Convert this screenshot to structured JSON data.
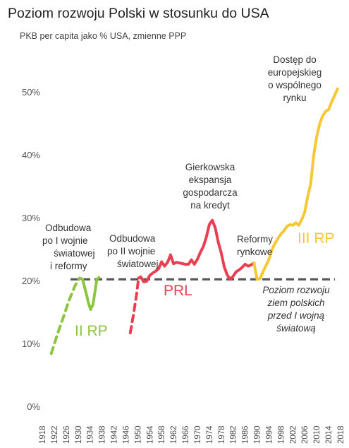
{
  "chart_data": {
    "type": "line",
    "title": "Poziom rozwoju Polski w stosunku do USA",
    "subtitle": "PKB per capita jako % USA, zmienne PPP",
    "xlabel": "",
    "ylabel": "",
    "xlim": [
      1918,
      2018
    ],
    "ylim": [
      0,
      50
    ],
    "y_ticks": [
      "0%",
      "10%",
      "20%",
      "30%",
      "40%",
      "50%"
    ],
    "x_ticks": [
      "1918",
      "1922",
      "1926",
      "1930",
      "1934",
      "1938",
      "1942",
      "1946",
      "1950",
      "1954",
      "1958",
      "1962",
      "1966",
      "1970",
      "1974",
      "1978",
      "1982",
      "1986",
      "1990",
      "1994",
      "1998",
      "2002",
      "2006",
      "2010",
      "2014",
      "2018"
    ],
    "grid": false,
    "reference_line": {
      "y": 20.3,
      "color": "#555555",
      "dashed": true
    },
    "series": [
      {
        "name": "II RP",
        "color": "#8cc63f",
        "segments": [
          {
            "dashed": true,
            "points": [
              [
                1921,
                8.5
              ],
              [
                1923,
                11.5
              ],
              [
                1925,
                14.2
              ],
              [
                1927,
                17
              ],
              [
                1929,
                19.3
              ],
              [
                1930.5,
                20.5
              ]
            ]
          },
          {
            "dashed": false,
            "points": [
              [
                1930.5,
                20.5
              ],
              [
                1931.5,
                20.3
              ],
              [
                1932.5,
                18.5
              ],
              [
                1933.5,
                16.5
              ],
              [
                1934.2,
                15.5
              ],
              [
                1935,
                16.3
              ],
              [
                1935.7,
                18.5
              ],
              [
                1936.3,
                20.3
              ],
              [
                1937,
                20.6
              ]
            ]
          }
        ]
      },
      {
        "name": "PRL",
        "color": "#e84050",
        "segments": [
          {
            "dashed": true,
            "points": [
              [
                1947.5,
                11.8
              ],
              [
                1948.5,
                14.5
              ],
              [
                1949.5,
                17.5
              ],
              [
                1950.3,
                20.5
              ]
            ]
          },
          {
            "dashed": false,
            "points": [
              [
                1950.3,
                20.5
              ],
              [
                1951,
                20.7
              ],
              [
                1952,
                19.9
              ],
              [
                1953,
                20
              ],
              [
                1954,
                20.9
              ],
              [
                1955,
                21.3
              ],
              [
                1956,
                21.6
              ],
              [
                1957,
                22
              ],
              [
                1958,
                23.1
              ],
              [
                1959,
                22.4
              ],
              [
                1960,
                23
              ],
              [
                1961,
                24.2
              ],
              [
                1962,
                22.8
              ],
              [
                1963,
                23
              ],
              [
                1964,
                22.9
              ],
              [
                1965,
                22.8
              ],
              [
                1966,
                22.7
              ],
              [
                1967,
                22.7
              ],
              [
                1968,
                23.4
              ],
              [
                1969,
                22.7
              ],
              [
                1970,
                23.5
              ],
              [
                1971,
                24.6
              ],
              [
                1972,
                25.5
              ],
              [
                1973,
                27
              ],
              [
                1974,
                29
              ],
              [
                1975,
                29.7
              ],
              [
                1976,
                28.5
              ],
              [
                1977,
                26.2
              ],
              [
                1978,
                24.5
              ],
              [
                1979,
                22.3
              ],
              [
                1980,
                21
              ],
              [
                1981,
                20.3
              ],
              [
                1982,
                20.8
              ],
              [
                1983,
                21.5
              ],
              [
                1984,
                21.8
              ],
              [
                1985,
                22.2
              ],
              [
                1986,
                22.7
              ],
              [
                1987,
                22.4
              ],
              [
                1988,
                22.6
              ],
              [
                1989,
                22.9
              ]
            ]
          }
        ]
      },
      {
        "name": "III RP",
        "color": "#f7c836",
        "segments": [
          {
            "dashed": false,
            "points": [
              [
                1989,
                22.9
              ],
              [
                1990,
                20.3
              ],
              [
                1991,
                20.4
              ],
              [
                1992,
                21.5
              ],
              [
                1993,
                22.5
              ],
              [
                1994,
                23.5
              ],
              [
                1995,
                25
              ],
              [
                1996,
                26
              ],
              [
                1997,
                26.8
              ],
              [
                1998,
                27.5
              ],
              [
                1999,
                28
              ],
              [
                2000,
                28.7
              ],
              [
                2001,
                29
              ],
              [
                2002,
                28.9
              ],
              [
                2003,
                29.3
              ],
              [
                2004,
                28.9
              ],
              [
                2005,
                29.8
              ],
              [
                2006,
                31
              ],
              [
                2007,
                33.5
              ],
              [
                2008,
                35.5
              ],
              [
                2009,
                40
              ],
              [
                2010,
                43
              ],
              [
                2011,
                45
              ],
              [
                2012,
                46.3
              ],
              [
                2013,
                47
              ],
              [
                2014,
                47.3
              ],
              [
                2015,
                48.5
              ],
              [
                2016,
                49.5
              ],
              [
                2017,
                50.6
              ]
            ]
          }
        ]
      }
    ],
    "annotations": [
      {
        "lines": [
          "Odbudowa",
          "po I wojnie",
          "światowej",
          "i reformy"
        ],
        "italic": false
      },
      {
        "lines": [
          "Odbudowa",
          "po II wojnie",
          "światowej"
        ],
        "italic": false
      },
      {
        "lines": [
          "Gierkowska",
          "ekspansja",
          "gospodarcza",
          "na kredyt"
        ],
        "italic": false
      },
      {
        "lines": [
          "Reformy",
          "rynkowe"
        ],
        "italic": false
      },
      {
        "lines": [
          "Dostęp do",
          "europejskieg",
          "o wspólnego",
          "rynku"
        ],
        "italic": false
      },
      {
        "lines": [
          "Poziom rozwoju",
          "ziem polskich",
          "przed I wojną",
          "światową"
        ],
        "italic": true
      }
    ]
  }
}
